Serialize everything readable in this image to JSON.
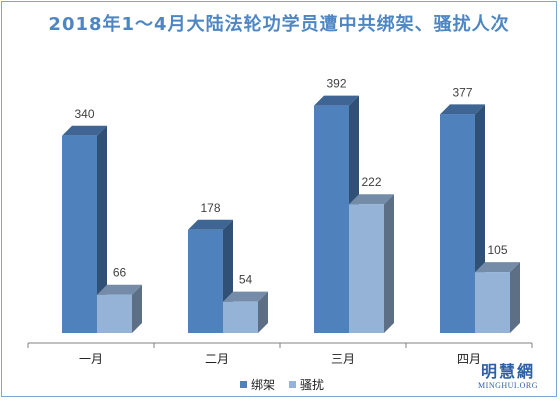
{
  "chart_data": {
    "type": "bar",
    "title": "2018年1～4月大陆法轮功学员遭中共绑架、骚扰人次",
    "categories": [
      "一月",
      "二月",
      "三月",
      "四月"
    ],
    "series": [
      {
        "name": "绑架",
        "values": [
          340,
          178,
          392,
          377
        ],
        "color": "#4f81bd"
      },
      {
        "name": "骚扰",
        "values": [
          66,
          54,
          222,
          105
        ],
        "color": "#95b3d7"
      }
    ],
    "ylim": [
      0,
      400
    ],
    "grid": false,
    "legend_position": "bottom",
    "style": "3d-column"
  },
  "watermark": {
    "cn": "明慧網",
    "en": "MINGHUI.ORG"
  }
}
